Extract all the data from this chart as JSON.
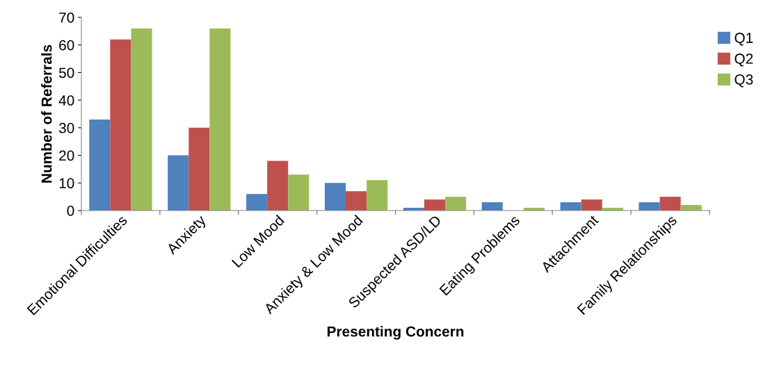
{
  "chart_data": {
    "type": "bar",
    "xlabel": "Presenting Concern",
    "ylabel": "Number of Referrals",
    "categories": [
      "Emotional Difficulties",
      "Anxiety",
      "Low Mood",
      "Anxiety & Low Mood",
      "Suspected ASD/LD",
      "Eating Problems",
      "Attachment",
      "Family Relationships"
    ],
    "series": [
      {
        "name": "Q1",
        "color": "#4f81bd",
        "values": [
          33,
          20,
          6,
          10,
          1,
          3,
          3,
          3
        ]
      },
      {
        "name": "Q2",
        "color": "#c0504d",
        "values": [
          62,
          30,
          18,
          7,
          4,
          0,
          4,
          5
        ]
      },
      {
        "name": "Q3",
        "color": "#9bbb59",
        "values": [
          66,
          66,
          13,
          11,
          5,
          1,
          1,
          2
        ]
      }
    ],
    "ylim": [
      0,
      70
    ],
    "yticks": [
      0,
      10,
      20,
      30,
      40,
      50,
      60,
      70
    ],
    "grid": false,
    "legend": "right"
  }
}
